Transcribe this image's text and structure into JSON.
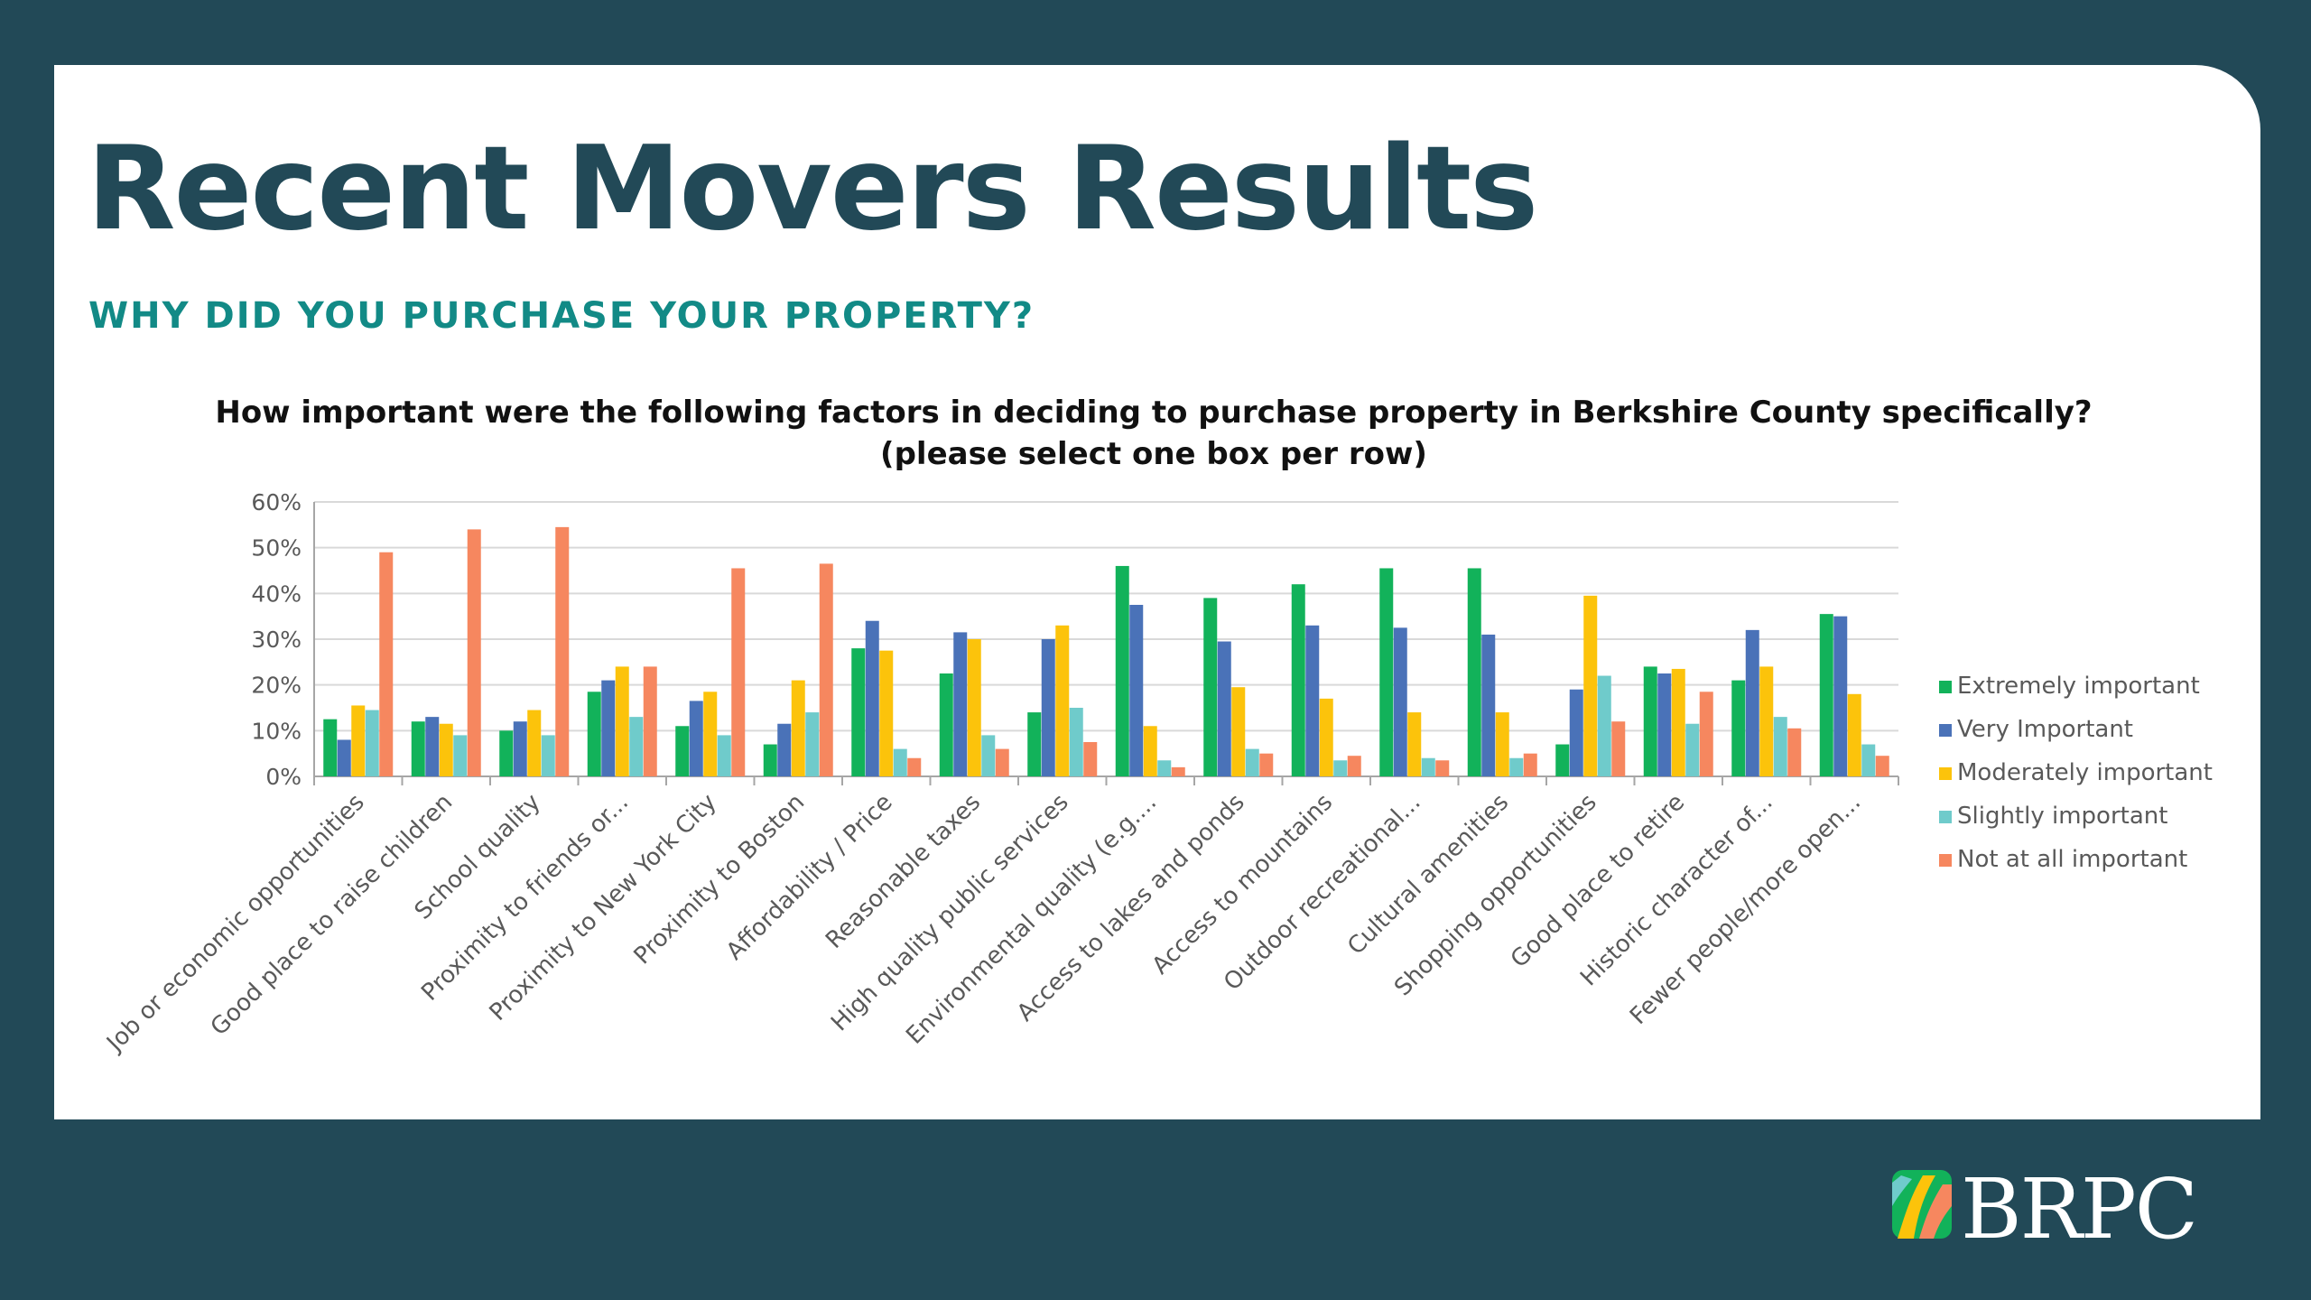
{
  "slide": {
    "title": "Recent Movers Results",
    "subtitle": "WHY DID YOU PURCHASE YOUR PROPERTY?",
    "logo_text": "BRPC"
  },
  "colors": {
    "background": "#224957",
    "card": "#ffffff",
    "title": "#224957",
    "subtitle": "#128a86"
  },
  "chart_data": {
    "type": "bar",
    "title": "How important were the following factors in deciding to purchase property in Berkshire County specifically?",
    "subtitle": "(please select one box per row)",
    "ylim": [
      0,
      60
    ],
    "yticks": [
      "0%",
      "10%",
      "20%",
      "30%",
      "40%",
      "50%",
      "60%"
    ],
    "grid": true,
    "legend_position": "right",
    "categories": [
      "Job or economic opportunities",
      "Good place to raise children",
      "School quality",
      "Proximity to friends or...",
      "Proximity to New York City",
      "Proximity to Boston",
      "Affordability / Price",
      "Reasonable taxes",
      "High quality public services",
      "Environmental quality (e.g....",
      "Access to lakes and ponds",
      "Access to mountains",
      "Outdoor recreational...",
      "Cultural amenities",
      "Shopping opportunities",
      "Good place to retire",
      "Historic character of...",
      "Fewer people/more open..."
    ],
    "series": [
      {
        "name": "Extremely important",
        "color": "#12b25a",
        "values": [
          12.5,
          12,
          10,
          18.5,
          11,
          7,
          28,
          22.5,
          14,
          46,
          39,
          42,
          45.5,
          45.5,
          7,
          24,
          21,
          35.5
        ]
      },
      {
        "name": "Very Important",
        "color": "#4a72b8",
        "values": [
          8,
          13,
          12,
          21,
          16.5,
          11.5,
          34,
          31.5,
          30,
          37.5,
          29.5,
          33,
          32.5,
          31,
          19,
          22.5,
          32,
          35
        ]
      },
      {
        "name": "Moderately important",
        "color": "#fcc30b",
        "values": [
          15.5,
          11.5,
          14.5,
          24,
          18.5,
          21,
          27.5,
          30,
          33,
          11,
          19.5,
          17,
          14,
          14,
          39.5,
          23.5,
          24,
          18
        ]
      },
      {
        "name": "Slightly important",
        "color": "#6fcbcb",
        "values": [
          14.5,
          9,
          9,
          13,
          9,
          14,
          6,
          9,
          15,
          3.5,
          6,
          3.5,
          4,
          4,
          22,
          11.5,
          13,
          7
        ]
      },
      {
        "name": "Not at all important",
        "color": "#f6875f",
        "values": [
          49,
          54,
          54.5,
          24,
          45.5,
          46.5,
          4,
          6,
          7.5,
          2,
          5,
          4.5,
          3.5,
          5,
          12,
          18.5,
          10.5,
          4.5
        ]
      }
    ]
  }
}
